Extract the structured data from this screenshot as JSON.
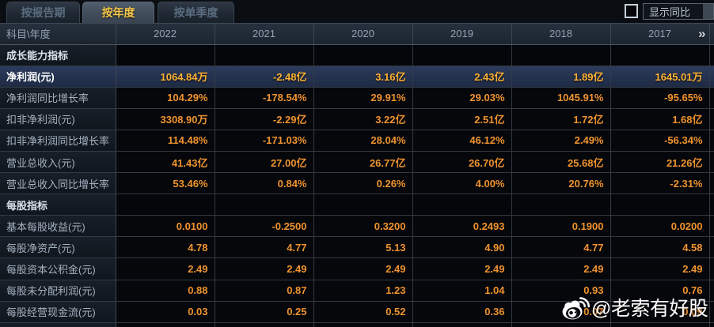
{
  "tabs": [
    {
      "label": "按报告期",
      "active": false
    },
    {
      "label": "按年度",
      "active": true
    },
    {
      "label": "按单季度",
      "active": false
    }
  ],
  "controls": {
    "yoy_checkbox_checked": false,
    "yoy_label": "显示同比"
  },
  "table": {
    "corner_label": "科目\\年度",
    "years": [
      "2022",
      "2021",
      "2020",
      "2019",
      "2018",
      "2017"
    ],
    "more_years_icon": "»",
    "rows": [
      {
        "type": "section",
        "label": "成长能力指标",
        "values": [
          "",
          "",
          "",
          "",
          "",
          ""
        ]
      },
      {
        "type": "data",
        "highlight": true,
        "label": "净利润(元)",
        "values": [
          "1064.84万",
          "-2.48亿",
          "3.16亿",
          "2.43亿",
          "1.89亿",
          "1645.01万"
        ]
      },
      {
        "type": "data",
        "highlight": false,
        "label": "净利润同比增长率",
        "values": [
          "104.29%",
          "-178.54%",
          "29.91%",
          "29.03%",
          "1045.91%",
          "-95.65%"
        ]
      },
      {
        "type": "data",
        "highlight": false,
        "label": "扣非净利润(元)",
        "values": [
          "3308.90万",
          "-2.29亿",
          "3.22亿",
          "2.51亿",
          "1.72亿",
          "1.68亿"
        ]
      },
      {
        "type": "data",
        "highlight": false,
        "label": "扣非净利润同比增长率",
        "values": [
          "114.48%",
          "-171.03%",
          "28.04%",
          "46.12%",
          "2.49%",
          "-56.34%"
        ]
      },
      {
        "type": "data",
        "highlight": false,
        "label": "营业总收入(元)",
        "values": [
          "41.43亿",
          "27.00亿",
          "26.77亿",
          "26.70亿",
          "25.68亿",
          "21.26亿"
        ]
      },
      {
        "type": "data",
        "highlight": false,
        "label": "营业总收入同比增长率",
        "values": [
          "53.46%",
          "0.84%",
          "0.26%",
          "4.00%",
          "20.76%",
          "-2.31%"
        ]
      },
      {
        "type": "section",
        "label": "每股指标",
        "values": [
          "",
          "",
          "",
          "",
          "",
          ""
        ]
      },
      {
        "type": "data",
        "highlight": false,
        "label": "基本每股收益(元)",
        "values": [
          "0.0100",
          "-0.2500",
          "0.3200",
          "0.2493",
          "0.1900",
          "0.0200"
        ]
      },
      {
        "type": "data",
        "highlight": false,
        "label": "每股净资产(元)",
        "values": [
          "4.78",
          "4.77",
          "5.13",
          "4.90",
          "4.77",
          "4.58"
        ]
      },
      {
        "type": "data",
        "highlight": false,
        "label": "每股资本公积金(元)",
        "values": [
          "2.49",
          "2.49",
          "2.49",
          "2.49",
          "2.49",
          "2.49"
        ]
      },
      {
        "type": "data",
        "highlight": false,
        "label": "每股未分配利润(元)",
        "values": [
          "0.88",
          "0.87",
          "1.23",
          "1.04",
          "0.93",
          "0.76"
        ]
      },
      {
        "type": "data",
        "highlight": false,
        "label": "每股经营现金流(元)",
        "values": [
          "0.03",
          "0.25",
          "0.52",
          "0.36",
          "0.07",
          "0.09"
        ]
      }
    ]
  },
  "watermark": {
    "handle": "@老索有好股",
    "logo": "weibo-icon"
  },
  "colors": {
    "page_background": "#0a0e13",
    "active_tab_text": "#f6c84b",
    "value_orange": "#f0932f",
    "highlight_row_background": "#243356",
    "highlight_value_gold": "#ffb233",
    "watermark_white": "#ffffff"
  }
}
